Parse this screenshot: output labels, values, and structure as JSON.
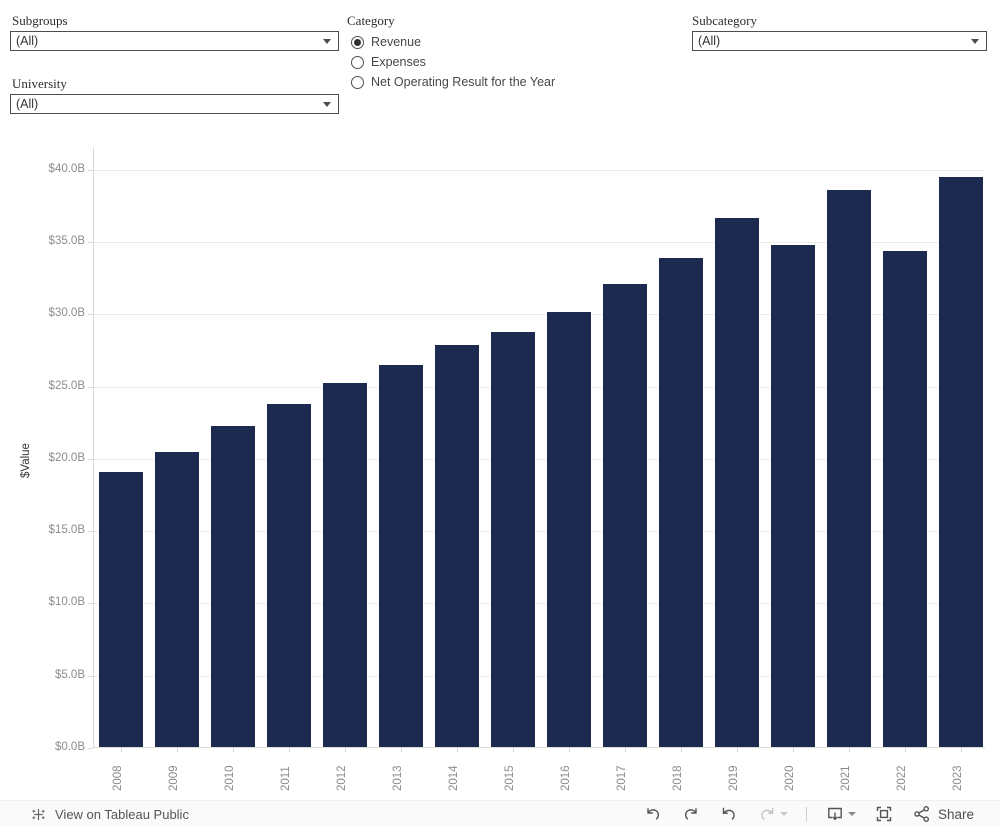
{
  "filters": {
    "subgroups": {
      "label": "Subgroups",
      "value": "(All)"
    },
    "university": {
      "label": "University",
      "value": "(All)"
    },
    "subcategory": {
      "label": "Subcategory",
      "value": "(All)"
    },
    "category": {
      "label": "Category",
      "options": [
        {
          "label": "Revenue",
          "selected": true
        },
        {
          "label": "Expenses",
          "selected": false
        },
        {
          "label": "Net Operating Result for the Year",
          "selected": false
        }
      ]
    }
  },
  "chart_data": {
    "type": "bar",
    "title": "",
    "xlabel": "",
    "ylabel": "$Value",
    "categories": [
      "2008",
      "2009",
      "2010",
      "2011",
      "2012",
      "2013",
      "2014",
      "2015",
      "2016",
      "2017",
      "2018",
      "2019",
      "2020",
      "2021",
      "2022",
      "2023"
    ],
    "values": [
      19.0,
      20.4,
      22.2,
      23.7,
      25.2,
      26.4,
      27.8,
      28.7,
      30.1,
      32.0,
      33.8,
      36.6,
      34.7,
      38.5,
      34.3,
      39.4
    ],
    "value_unit": "billions USD",
    "ylim": [
      0,
      41.5
    ],
    "ytick_values": [
      0,
      5,
      10,
      15,
      20,
      25,
      30,
      35,
      40
    ],
    "ytick_labels": [
      "$0.0B",
      "$5.0B",
      "$10.0B",
      "$15.0B",
      "$20.0B",
      "$25.0B",
      "$30.0B",
      "$35.0B",
      "$40.0B"
    ],
    "grid": "horizontal",
    "legend": "none",
    "bar_color": "#1b2a4e",
    "x_label_rotation": -90
  },
  "toolbar": {
    "view_label": "View on Tableau Public",
    "share_label": "Share",
    "icons": [
      "tableau-logo-icon",
      "undo-icon",
      "redo-icon",
      "revert-icon",
      "refresh-icon",
      "caret-down-icon",
      "download-icon",
      "fullscreen-icon",
      "share-icon"
    ]
  },
  "colors": {
    "bar": "#1b2a4e",
    "axis_text": "#8c8c8c",
    "gridline": "#ececec",
    "toolbar_bg": "#fafafa",
    "icon": "#545454",
    "icon_disabled": "#c2c2c2"
  }
}
